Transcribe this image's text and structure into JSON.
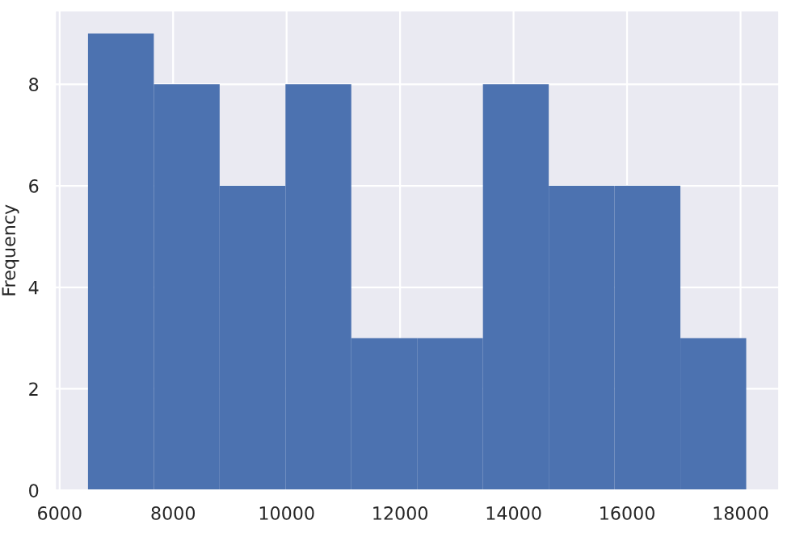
{
  "chart_data": {
    "type": "histogram",
    "ylabel": "Frequency",
    "bins": [
      6500,
      7660,
      8820,
      9980,
      11140,
      12300,
      13460,
      14620,
      15780,
      16940,
      18100
    ],
    "values": [
      9,
      8,
      6,
      8,
      3,
      3,
      8,
      6,
      6,
      3
    ],
    "color": "#4c72b0",
    "xlim": [
      5920,
      18680
    ],
    "xticks": [
      6000,
      8000,
      10000,
      12000,
      14000,
      16000,
      18000
    ],
    "ylim": [
      0,
      9.45
    ],
    "yticks": [
      0,
      2,
      4,
      6,
      8
    ],
    "grid": true
  }
}
